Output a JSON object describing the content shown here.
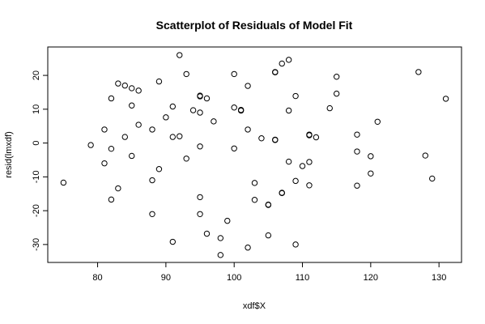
{
  "chart_data": {
    "type": "scatter",
    "title": "Scatterplot of Residuals of Model Fit",
    "xlabel": "xdf$X",
    "ylabel": "resid(lmxdf)",
    "xlim": [
      72.7,
      133.3
    ],
    "ylim": [
      -35.3,
      28.4
    ],
    "xticks": [
      80,
      90,
      100,
      110,
      120,
      130
    ],
    "yticks": [
      -30,
      -20,
      -10,
      0,
      10,
      20
    ],
    "grid": false,
    "marker": "open-circle",
    "points": [
      [
        75,
        -11.7
      ],
      [
        79,
        -0.6
      ],
      [
        81,
        4.0
      ],
      [
        81,
        -6.0
      ],
      [
        82,
        13.2
      ],
      [
        82,
        -1.7
      ],
      [
        82,
        -16.7
      ],
      [
        83,
        17.6
      ],
      [
        83,
        -13.4
      ],
      [
        84,
        17.0
      ],
      [
        84,
        1.8
      ],
      [
        85,
        16.2
      ],
      [
        85,
        11.1
      ],
      [
        85,
        -3.8
      ],
      [
        86,
        15.5
      ],
      [
        86,
        5.4
      ],
      [
        88,
        4.0
      ],
      [
        88,
        -11.0
      ],
      [
        88,
        -21.0
      ],
      [
        89,
        18.2
      ],
      [
        89,
        -7.7
      ],
      [
        90,
        7.6
      ],
      [
        91,
        10.8
      ],
      [
        91,
        1.8
      ],
      [
        91,
        -29.2
      ],
      [
        92,
        26.0
      ],
      [
        92,
        2.0
      ],
      [
        93,
        20.4
      ],
      [
        93,
        -4.6
      ],
      [
        94,
        9.7
      ],
      [
        95,
        14.0
      ],
      [
        95,
        13.8
      ],
      [
        95,
        9.0
      ],
      [
        95,
        -1.0
      ],
      [
        95,
        -16.0
      ],
      [
        95,
        -21.0
      ],
      [
        96,
        13.2
      ],
      [
        96,
        -26.8
      ],
      [
        97,
        6.4
      ],
      [
        98,
        -28.1
      ],
      [
        98,
        -33.1
      ],
      [
        99,
        -23.0
      ],
      [
        100,
        20.4
      ],
      [
        100,
        10.5
      ],
      [
        100,
        -1.6
      ],
      [
        101,
        9.8
      ],
      [
        101,
        9.6
      ],
      [
        102,
        16.9
      ],
      [
        102,
        4.0
      ],
      [
        102,
        -30.9
      ],
      [
        103,
        -11.8
      ],
      [
        103,
        -16.8
      ],
      [
        104,
        1.4
      ],
      [
        105,
        -18.2
      ],
      [
        105,
        -18.3
      ],
      [
        105,
        -27.3
      ],
      [
        106,
        21.0
      ],
      [
        106,
        20.9
      ],
      [
        106,
        1.0
      ],
      [
        106,
        0.9
      ],
      [
        107,
        23.5
      ],
      [
        107,
        -14.7
      ],
      [
        107,
        -14.8
      ],
      [
        108,
        24.6
      ],
      [
        108,
        9.6
      ],
      [
        108,
        -5.5
      ],
      [
        109,
        13.9
      ],
      [
        109,
        -11.2
      ],
      [
        109,
        -30.0
      ],
      [
        110,
        -6.8
      ],
      [
        111,
        2.5
      ],
      [
        111,
        2.3
      ],
      [
        111,
        -5.6
      ],
      [
        111,
        -12.5
      ],
      [
        112,
        1.7
      ],
      [
        114,
        10.3
      ],
      [
        115,
        19.6
      ],
      [
        115,
        14.6
      ],
      [
        118,
        2.5
      ],
      [
        118,
        -2.5
      ],
      [
        118,
        -12.6
      ],
      [
        120,
        -3.9
      ],
      [
        120,
        -9.0
      ],
      [
        121,
        6.3
      ],
      [
        127,
        21.0
      ],
      [
        128,
        -3.7
      ],
      [
        129,
        -10.5
      ],
      [
        131,
        13.1
      ]
    ]
  }
}
